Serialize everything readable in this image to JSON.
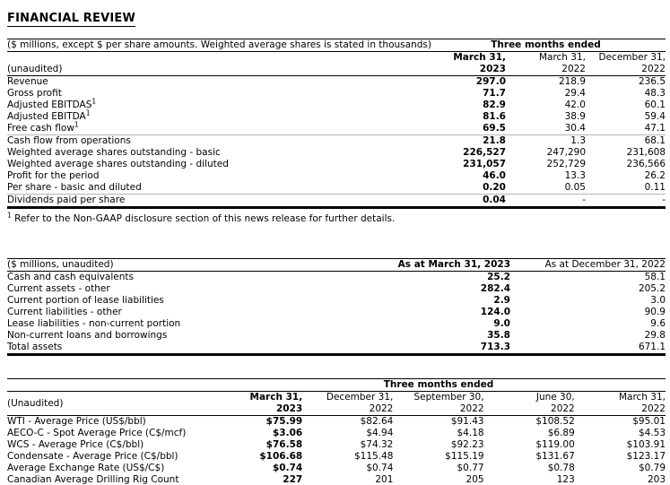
{
  "page_title": "FINANCIAL REVIEW",
  "income_table": {
    "caption": "($ millions, except $ per share amounts. Weighted average shares is stated in thousands)",
    "span_header": "Three months ended",
    "unaudited_label": "(unaudited)",
    "columns": [
      {
        "line1": "March 31,",
        "line2": "2023"
      },
      {
        "line1": "March 31,",
        "line2": "2022"
      },
      {
        "line1": "December 31,",
        "line2": "2022"
      }
    ],
    "rows": [
      {
        "label": "Revenue",
        "v1": "297.0",
        "v2": "218.9",
        "v3": "236.5"
      },
      {
        "label": "Gross profit",
        "v1": "71.7",
        "v2": "29.4",
        "v3": "48.3"
      },
      {
        "label": "Adjusted EBITDAS",
        "sup": "1",
        "v1": "82.9",
        "v2": "42.0",
        "v3": "60.1"
      },
      {
        "label": "Adjusted EBITDA",
        "sup": "1",
        "v1": "81.6",
        "v2": "38.9",
        "v3": "59.4"
      },
      {
        "label": "Free cash flow",
        "sup": "1",
        "v1": "69.5",
        "v2": "30.4",
        "v3": "47.1"
      },
      {
        "label": "Cash flow from operations",
        "v1": "21.8",
        "v2": "1.3",
        "v3": "68.1",
        "divider": true
      },
      {
        "label": "Weighted average shares outstanding - basic",
        "v1": "226,527",
        "v2": "247,290",
        "v3": "231,608"
      },
      {
        "label": "Weighted average shares outstanding - diluted",
        "v1": "231,057",
        "v2": "252,729",
        "v3": "236,566"
      },
      {
        "label": "Profit for the period",
        "v1": "46.0",
        "v2": "13.3",
        "v3": "26.2"
      },
      {
        "label": "Per share - basic and diluted",
        "v1": "0.20",
        "v2": "0.05",
        "v3": "0.11"
      },
      {
        "label": "Dividends paid per share",
        "v1": "0.04",
        "v2": "-",
        "v3": "-",
        "divider": true
      }
    ],
    "footnote_sup": "1",
    "footnote": "Refer to the Non-GAAP disclosure section of this news release for further details."
  },
  "balance_table": {
    "caption": "($ millions, unaudited)",
    "columns": [
      "As at March 31, 2023",
      "As at December 31, 2022"
    ],
    "rows": [
      {
        "label": "Cash and cash equivalents",
        "v1": "25.2",
        "v2": "58.1"
      },
      {
        "label": "Current assets - other",
        "v1": "282.4",
        "v2": "205.2"
      },
      {
        "label": "Current portion of lease liabilities",
        "v1": "2.9",
        "v2": "3.0"
      },
      {
        "label": "Current liabilities - other",
        "v1": "124.0",
        "v2": "90.9"
      },
      {
        "label": "Lease liabilities - non-current portion",
        "v1": "9.0",
        "v2": "9.6"
      },
      {
        "label": "Non-current loans and borrowings",
        "v1": "35.8",
        "v2": "29.8"
      },
      {
        "label": "Total assets",
        "v1": "713.3",
        "v2": "671.1"
      }
    ]
  },
  "prices_table": {
    "span_header": "Three months ended",
    "unaudited_label": "(Unaudited)",
    "columns": [
      {
        "line1": "March 31,",
        "line2": "2023"
      },
      {
        "line1": "December 31,",
        "line2": "2022"
      },
      {
        "line1": "September 30,",
        "line2": "2022"
      },
      {
        "line1": "June 30,",
        "line2": "2022"
      },
      {
        "line1": "March 31,",
        "line2": "2022"
      }
    ],
    "rows": [
      {
        "label": "WTI - Average Price (US$/bbl)",
        "v1": "$75.99",
        "v2": "$82.64",
        "v3": "$91.43",
        "v4": "$108.52",
        "v5": "$95.01"
      },
      {
        "label": "AECO-C - Spot Average Price (C$/mcf)",
        "v1": "$3.06",
        "v2": "$4.94",
        "v3": "$4.18",
        "v4": "$6.89",
        "v5": "$4.53"
      },
      {
        "label": "WCS - Average Price (C$/bbl)",
        "v1": "$76.58",
        "v2": "$74.32",
        "v3": "$92.23",
        "v4": "$119.00",
        "v5": "$103.91"
      },
      {
        "label": "Condensate - Average Price (C$/bbl)",
        "v1": "$106.68",
        "v2": "$115.48",
        "v3": "$115.19",
        "v4": "$131.67",
        "v5": "$123.17"
      },
      {
        "label": "Average Exchange Rate (US$/C$)",
        "v1": "$0.74",
        "v2": "$0.74",
        "v3": "$0.77",
        "v4": "$0.78",
        "v5": "$0.79"
      },
      {
        "label": "Canadian Average Drilling Rig Count",
        "v1": "227",
        "v2": "201",
        "v3": "205",
        "v4": "123",
        "v5": "203"
      }
    ]
  }
}
